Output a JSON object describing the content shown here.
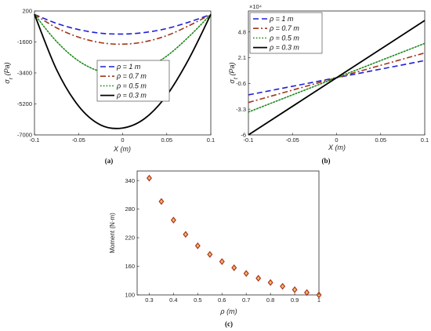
{
  "chart_data": [
    {
      "type": "line",
      "panel": "a",
      "caption": "(a)",
      "xlabel": "X (m)",
      "ylabel": "σr (Pa)",
      "ylabel_main": "σ",
      "ylabel_sub": "r",
      "ylabel_unit": " (Pa)",
      "xlim": [
        -0.1,
        0.1
      ],
      "ylim": [
        -7000,
        200
      ],
      "xticks": [
        -0.1,
        -0.05,
        0,
        0.05,
        0.1
      ],
      "xticklabels": [
        "-0.1",
        "-0.05",
        "0",
        "0.05",
        "0.1"
      ],
      "yticks": [
        200,
        -1600,
        -3400,
        -5200,
        -7000
      ],
      "yticklabels": [
        "200",
        "-1600",
        "-3400",
        "-5200",
        "-7000"
      ],
      "legend_position": "center",
      "series": [
        {
          "name": "ρ = 1 m",
          "color": "#1f1fd6",
          "dash": "dashed",
          "x": [
            -0.1,
            -0.075,
            -0.05,
            -0.025,
            0,
            0.025,
            0.05,
            0.075,
            0.1
          ],
          "y": [
            0,
            -520,
            -880,
            -1090,
            -1140,
            -1050,
            -820,
            -450,
            0
          ]
        },
        {
          "name": "ρ = 0.7 m",
          "color": "#a0361b",
          "dash": "dashdot",
          "x": [
            -0.1,
            -0.075,
            -0.05,
            -0.025,
            0,
            0.025,
            0.05,
            0.075,
            0.1
          ],
          "y": [
            0,
            -780,
            -1320,
            -1640,
            -1730,
            -1590,
            -1230,
            -660,
            0
          ]
        },
        {
          "name": "ρ = 0.5 m",
          "color": "#1f8a1f",
          "dash": "dotted",
          "x": [
            -0.1,
            -0.075,
            -0.05,
            -0.025,
            0,
            0.025,
            0.05,
            0.075,
            0.1
          ],
          "y": [
            0,
            -1570,
            -2700,
            -3320,
            -3460,
            -3170,
            -2420,
            -1300,
            0
          ]
        },
        {
          "name": "ρ = 0.3 m",
          "color": "#000000",
          "dash": "solid",
          "x": [
            -0.1,
            -0.075,
            -0.05,
            -0.025,
            0,
            0.025,
            0.05,
            0.075,
            0.1
          ],
          "y": [
            0,
            -3200,
            -5320,
            -6420,
            -6600,
            -6050,
            -4700,
            -2600,
            0
          ]
        }
      ]
    },
    {
      "type": "line",
      "panel": "b",
      "caption": "(b)",
      "xlabel": "X (m)",
      "ylabel": "σt (Pa)",
      "ylabel_main": "σ",
      "ylabel_sub": "t",
      "ylabel_unit": " (Pa)",
      "y_multiplier": "×10⁴",
      "xlim": [
        -0.1,
        0.1
      ],
      "ylim": [
        -6,
        7
      ],
      "xticks": [
        -0.1,
        -0.05,
        0,
        0.05,
        0.1
      ],
      "xticklabels": [
        "-0.1",
        "-0.05",
        "0",
        "0.05",
        "0.1"
      ],
      "yticks": [
        4.8,
        2.1,
        -0.6,
        -3.3,
        -6
      ],
      "yticklabels": [
        "4.8",
        "2.1",
        "-0.6",
        "-3.3",
        "-6"
      ],
      "legend_position": "top-left",
      "series": [
        {
          "name": "ρ = 1 m",
          "color": "#1f1fd6",
          "dash": "dashed",
          "x": [
            -0.1,
            0.1
          ],
          "y": [
            -1.8,
            1.8
          ]
        },
        {
          "name": "ρ = 0.7 m",
          "color": "#a0361b",
          "dash": "dashdot",
          "x": [
            -0.1,
            0.1
          ],
          "y": [
            -2.6,
            2.6
          ]
        },
        {
          "name": "ρ = 0.5 m",
          "color": "#1f8a1f",
          "dash": "dotted",
          "x": [
            -0.1,
            0.1
          ],
          "y": [
            -3.6,
            3.6
          ]
        },
        {
          "name": "ρ = 0.3 m",
          "color": "#000000",
          "dash": "solid",
          "x": [
            -0.1,
            0.1
          ],
          "y": [
            -6.0,
            6.0
          ]
        }
      ]
    },
    {
      "type": "scatter",
      "panel": "c",
      "caption": "(c)",
      "xlabel": "ρ (m)",
      "ylabel": "Moment (N·m)",
      "xlim": [
        0.25,
        1.0
      ],
      "ylim": [
        100,
        360
      ],
      "xticks": [
        0.3,
        0.4,
        0.5,
        0.6,
        0.7,
        0.8,
        0.9,
        1
      ],
      "xticklabels": [
        "0.3",
        "0.4",
        "0.5",
        "0.6",
        "0.7",
        "0.8",
        "0.9",
        "1"
      ],
      "yticks": [
        100,
        160,
        220,
        280,
        340
      ],
      "yticklabels": [
        "100",
        "160",
        "220",
        "280",
        "340"
      ],
      "marker_color": "#b03020",
      "marker_fill": "#e8c06a",
      "x": [
        0.3,
        0.35,
        0.4,
        0.45,
        0.5,
        0.55,
        0.6,
        0.65,
        0.7,
        0.75,
        0.8,
        0.85,
        0.9,
        0.95,
        1.0
      ],
      "y": [
        345,
        296,
        257,
        227,
        203,
        185,
        170,
        157,
        145,
        135,
        126,
        118,
        111,
        105,
        100
      ]
    }
  ]
}
